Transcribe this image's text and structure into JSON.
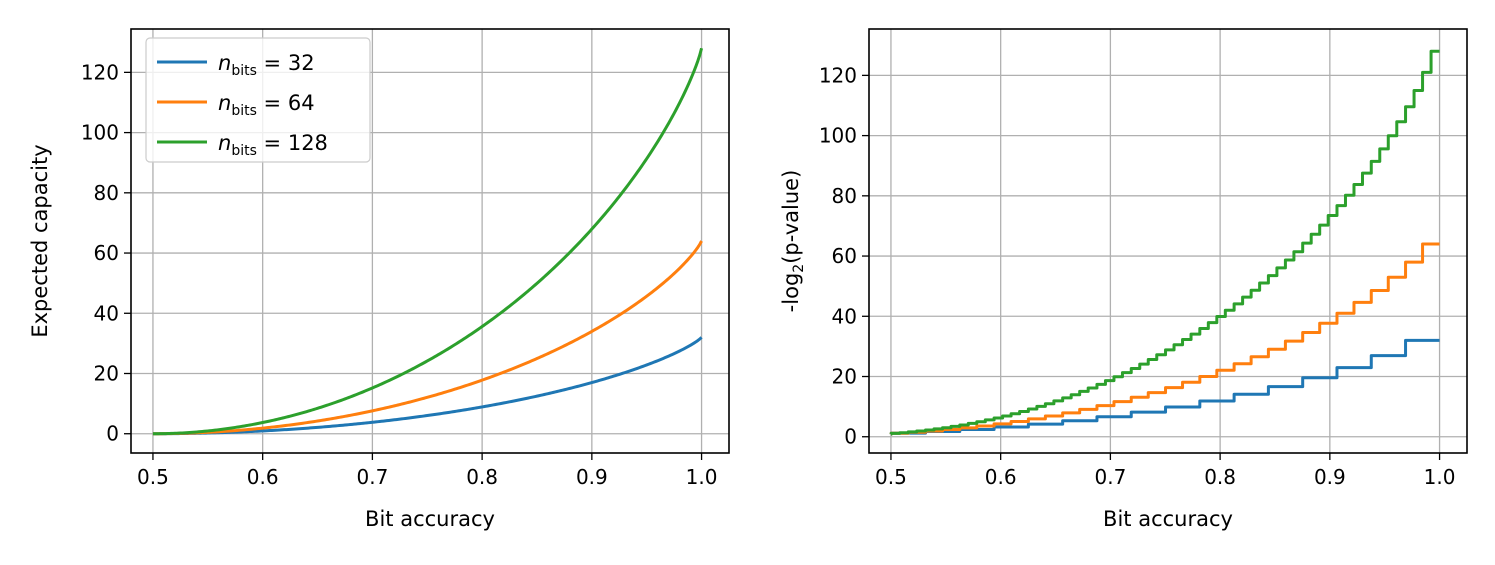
{
  "chart_data": [
    {
      "type": "line",
      "ylabel": "Expected capacity",
      "xlabel": "Bit accuracy",
      "xlim": [
        0.48,
        1.025
      ],
      "ylim": [
        -6.4,
        134.4
      ],
      "xticks": [
        "0.5",
        "0.6",
        "0.7",
        "0.8",
        "0.9",
        "1.0"
      ],
      "yticks": [
        "0",
        "20",
        "40",
        "60",
        "80",
        "100",
        "120"
      ],
      "grid": true,
      "legend": "top-left",
      "formula": "n_bits * (1 - binary_entropy(accuracy))",
      "series": [
        {
          "name_var": "n",
          "name_sub": "bits",
          "name_val": "32",
          "n_bits": 32,
          "color": "#1f77b4",
          "x": [
            0.5,
            0.55,
            0.6,
            0.65,
            0.7,
            0.75,
            0.8,
            0.85,
            0.9,
            0.95,
            1.0
          ],
          "y": [
            0,
            0.23,
            0.93,
            2.1,
            3.8,
            6.04,
            8.88,
            12.42,
            16.9,
            22.74,
            32
          ]
        },
        {
          "name_var": "n",
          "name_sub": "bits",
          "name_val": "64",
          "n_bits": 64,
          "color": "#ff7f0e",
          "x": [
            0.5,
            0.55,
            0.6,
            0.65,
            0.7,
            0.75,
            0.8,
            0.85,
            0.9,
            0.95,
            1.0
          ],
          "y": [
            0,
            0.46,
            1.86,
            4.2,
            7.6,
            12.08,
            17.76,
            24.84,
            33.8,
            45.48,
            64
          ]
        },
        {
          "name_var": "n",
          "name_sub": "bits",
          "name_val": "128",
          "n_bits": 128,
          "color": "#2ca02c",
          "x": [
            0.5,
            0.55,
            0.6,
            0.65,
            0.7,
            0.75,
            0.8,
            0.85,
            0.9,
            0.95,
            1.0
          ],
          "y": [
            0,
            0.92,
            3.72,
            8.4,
            15.2,
            24.16,
            35.52,
            49.68,
            67.6,
            90.96,
            128
          ]
        }
      ]
    },
    {
      "type": "line",
      "ylabel_prefix": "-log",
      "ylabel_sub": "2",
      "ylabel_suffix": "(p-value)",
      "xlabel": "Bit accuracy",
      "xlim": [
        0.48,
        1.025
      ],
      "ylim": [
        -5.4,
        135.4
      ],
      "xticks": [
        "0.5",
        "0.6",
        "0.7",
        "0.8",
        "0.9",
        "1.0"
      ],
      "yticks": [
        "0",
        "20",
        "40",
        "60",
        "80",
        "100",
        "120"
      ],
      "grid": true,
      "step_formula": "-log2(P[Binomial(n_bits, 0.5) >= k]), k = ceil(accuracy * n_bits)",
      "series": [
        {
          "n_bits": 32,
          "color": "#1f77b4",
          "x": [
            0.5,
            0.6,
            0.7,
            0.8,
            0.9,
            0.97,
            1.0
          ],
          "y": [
            0.85,
            2.83,
            5.66,
            10.21,
            16.85,
            26.99,
            32
          ]
        },
        {
          "n_bits": 64,
          "color": "#ff7f0e",
          "x": [
            0.5,
            0.6,
            0.7,
            0.8,
            0.9,
            0.97,
            1.0
          ],
          "y": [
            0.9,
            3.5,
            8.7,
            18.1,
            33.4,
            52.0,
            64
          ]
        },
        {
          "n_bits": 128,
          "color": "#2ca02c",
          "x": [
            0.5,
            0.6,
            0.7,
            0.8,
            0.9,
            0.97,
            1.0
          ],
          "y": [
            0.93,
            5.2,
            15.5,
            35.3,
            66.0,
            104.0,
            128
          ]
        }
      ]
    }
  ]
}
